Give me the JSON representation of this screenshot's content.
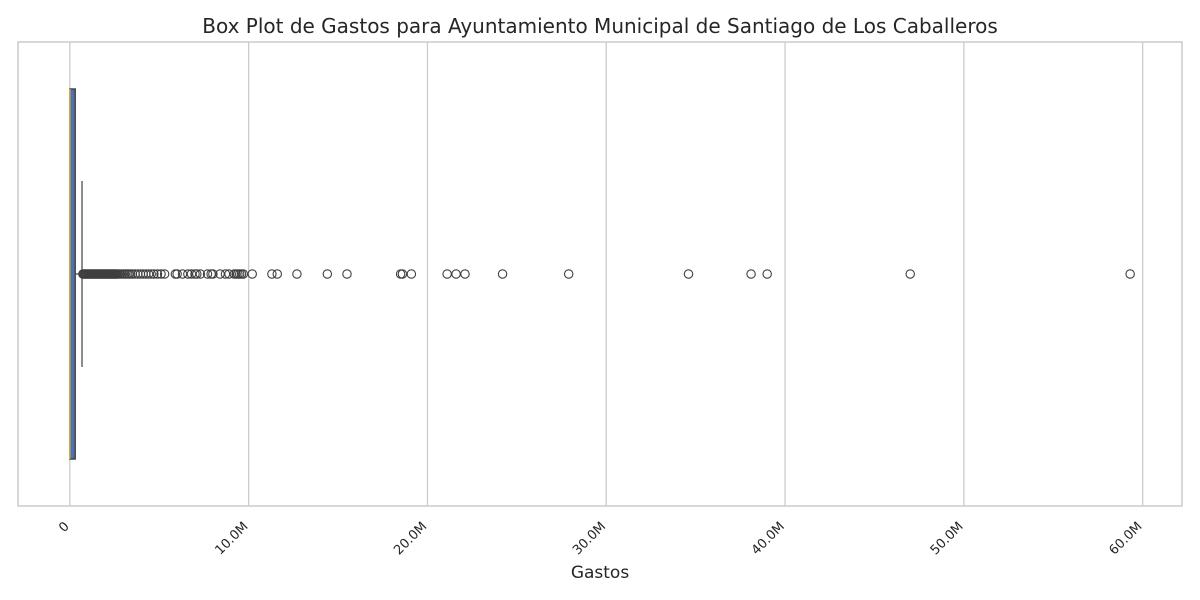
{
  "chart_data": {
    "type": "box",
    "title": "Box Plot de Gastos para Ayuntamiento Municipal de Santiago de Los Caballeros",
    "xlabel": "Gastos",
    "ylabel": "",
    "xlim": [
      -2900000,
      62200000
    ],
    "x_ticks": [
      {
        "value": 0,
        "label": "0"
      },
      {
        "value": 10000000,
        "label": "10.0M"
      },
      {
        "value": 20000000,
        "label": "20.0M"
      },
      {
        "value": 30000000,
        "label": "30.0M"
      },
      {
        "value": 40000000,
        "label": "40.0M"
      },
      {
        "value": 50000000,
        "label": "50.0M"
      },
      {
        "value": 60000000,
        "label": "60.0M"
      }
    ],
    "grid": true,
    "orientation": "horizontal",
    "box": {
      "whisker_low": 0,
      "q1": 0,
      "median": 0,
      "q3": 300000,
      "whisker_high": 680000,
      "color": "#4c72b0",
      "median_color": "#f0c040"
    },
    "outliers": [
      730000,
      780000,
      830000,
      880000,
      930000,
      980000,
      1030000,
      1080000,
      1130000,
      1180000,
      1230000,
      1280000,
      1330000,
      1380000,
      1430000,
      1480000,
      1530000,
      1580000,
      1630000,
      1680000,
      1730000,
      1780000,
      1830000,
      1880000,
      1930000,
      1980000,
      2030000,
      2080000,
      2130000,
      2180000,
      2230000,
      2280000,
      2330000,
      2380000,
      2430000,
      2480000,
      2530000,
      2580000,
      2630000,
      2700000,
      2800000,
      2900000,
      3000000,
      3100000,
      3200000,
      3300000,
      3400000,
      3500000,
      3650000,
      3800000,
      3950000,
      4100000,
      4250000,
      4400000,
      4550000,
      4700000,
      4900000,
      5100000,
      5300000,
      5900000,
      6000000,
      6300000,
      6600000,
      6800000,
      7000000,
      7100000,
      7300000,
      7700000,
      7900000,
      8000000,
      8400000,
      8700000,
      8900000,
      9200000,
      9300000,
      9400000,
      9500000,
      9600000,
      9700000,
      10200000,
      11300000,
      11600000,
      12700000,
      14400000,
      15500000,
      18500000,
      18600000,
      19100000,
      21100000,
      21600000,
      22100000,
      24200000,
      27900000,
      34600000,
      38100000,
      39000000,
      47000000,
      59300000
    ]
  }
}
